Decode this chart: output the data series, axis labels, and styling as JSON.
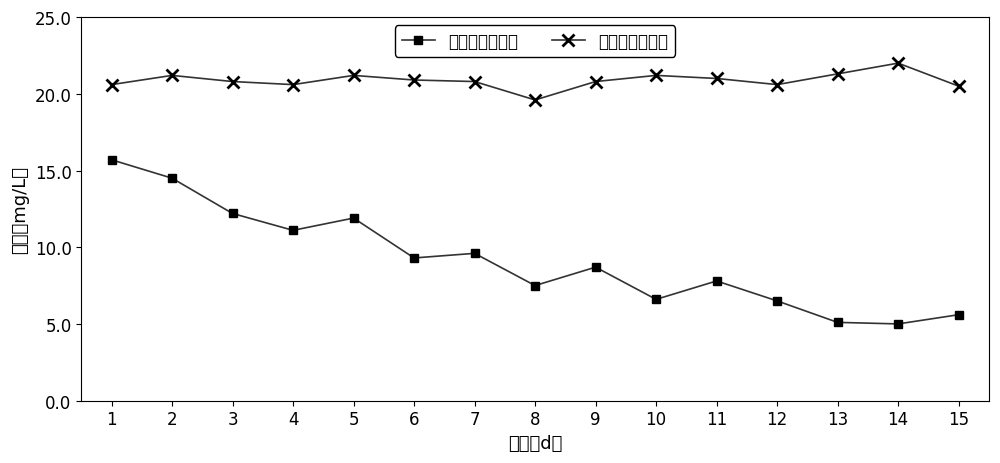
{
  "x": [
    1,
    2,
    3,
    4,
    5,
    6,
    7,
    8,
    9,
    10,
    11,
    12,
    13,
    14,
    15
  ],
  "outlet_nitrate": [
    15.7,
    14.5,
    12.2,
    11.1,
    11.9,
    9.3,
    9.6,
    7.5,
    8.7,
    6.6,
    7.8,
    6.5,
    5.1,
    5.0,
    5.6
  ],
  "inlet_nitrate": [
    20.6,
    21.2,
    20.8,
    20.6,
    21.2,
    20.9,
    20.8,
    19.6,
    20.8,
    21.2,
    21.0,
    20.6,
    21.3,
    22.0,
    20.5
  ],
  "outlet_label": "出水硝酸盐浓度",
  "inlet_label": "进水硝酸盐浓度",
  "xlabel": "时间（d）",
  "ylabel": "浓度（mg/L）",
  "ylim": [
    0.0,
    25.0
  ],
  "yticks": [
    0.0,
    5.0,
    10.0,
    15.0,
    20.0,
    25.0
  ],
  "xlim": [
    0.5,
    15.5
  ],
  "xticks": [
    1,
    2,
    3,
    4,
    5,
    6,
    7,
    8,
    9,
    10,
    11,
    12,
    13,
    14,
    15
  ],
  "line_color": "#333333",
  "background_color": "#ffffff",
  "axis_fontsize": 13,
  "tick_fontsize": 12,
  "legend_fontsize": 12
}
